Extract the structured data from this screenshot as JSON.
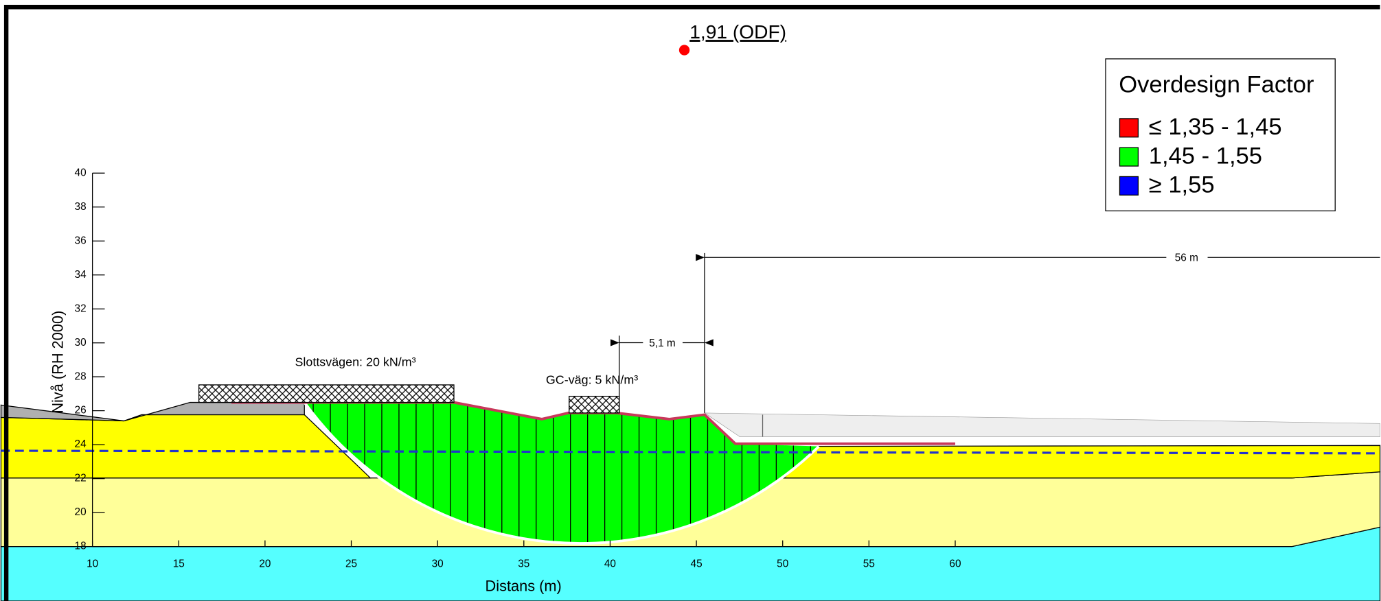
{
  "chart_data": {
    "type": "cross-section",
    "annotation": "1,91 (ODF)",
    "xlabel": "Distans (m)",
    "ylabel": "Nivå (RH 2000)",
    "xlim": [
      10,
      60
    ],
    "ylim": [
      18,
      40
    ],
    "xticks": [
      10,
      15,
      20,
      25,
      30,
      35,
      40,
      45,
      50,
      55,
      60
    ],
    "yticks": [
      18,
      20,
      22,
      24,
      26,
      28,
      30,
      32,
      34,
      36,
      38,
      40
    ],
    "legend": {
      "title": "Overdesign Factor",
      "entries": [
        {
          "label": "≤ 1,35 - 1,45",
          "color": "#ff0000"
        },
        {
          "label": "1,45 - 1,55",
          "color": "#00ff00"
        },
        {
          "label": "≥ 1,55",
          "color": "#0000ff"
        }
      ]
    },
    "loads": [
      "Slottsvägen: 20 kN/m³",
      "GC-väg: 5 kN/m³"
    ],
    "dimensions": [
      "5,1 m",
      "56 m"
    ]
  }
}
